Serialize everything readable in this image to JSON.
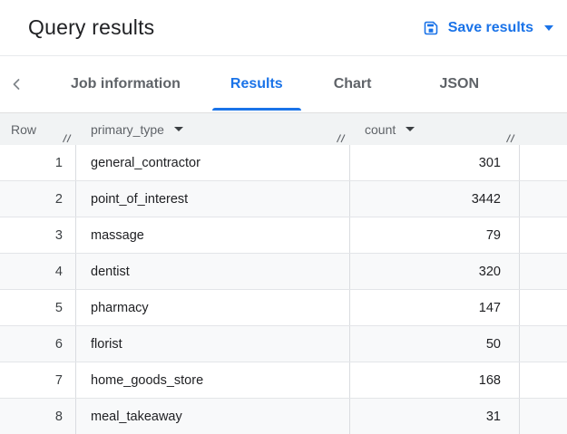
{
  "header": {
    "title": "Query results",
    "save_button": {
      "label": "Save results"
    }
  },
  "tabs": {
    "items": [
      {
        "label": "Job information",
        "active": false
      },
      {
        "label": "Results",
        "active": true
      },
      {
        "label": "Chart",
        "active": false
      },
      {
        "label": "JSON",
        "active": false
      }
    ]
  },
  "table": {
    "columns": [
      {
        "label": "Row",
        "sortable": false
      },
      {
        "label": "primary_type",
        "sortable": true
      },
      {
        "label": "count",
        "sortable": true
      }
    ],
    "rows": [
      {
        "row": "1",
        "primary_type": "general_contractor",
        "count": "301"
      },
      {
        "row": "2",
        "primary_type": "point_of_interest",
        "count": "3442"
      },
      {
        "row": "3",
        "primary_type": "massage",
        "count": "79"
      },
      {
        "row": "4",
        "primary_type": "dentist",
        "count": "320"
      },
      {
        "row": "5",
        "primary_type": "pharmacy",
        "count": "147"
      },
      {
        "row": "6",
        "primary_type": "florist",
        "count": "50"
      },
      {
        "row": "7",
        "primary_type": "home_goods_store",
        "count": "168"
      },
      {
        "row": "8",
        "primary_type": "meal_takeaway",
        "count": "31"
      }
    ]
  },
  "icons": {
    "save": "save-icon",
    "dropdown": "arrow-drop-down-icon",
    "back": "chevron-left-icon",
    "resize": "column-resize-handle-icon"
  },
  "colors": {
    "accent": "#1a73e8",
    "title_text": "#202124",
    "inactive_tab_text": "#5f6368",
    "table_header_bg": "#f1f3f4",
    "alt_row_bg": "#f8f9fa",
    "border": "#dadce0"
  }
}
